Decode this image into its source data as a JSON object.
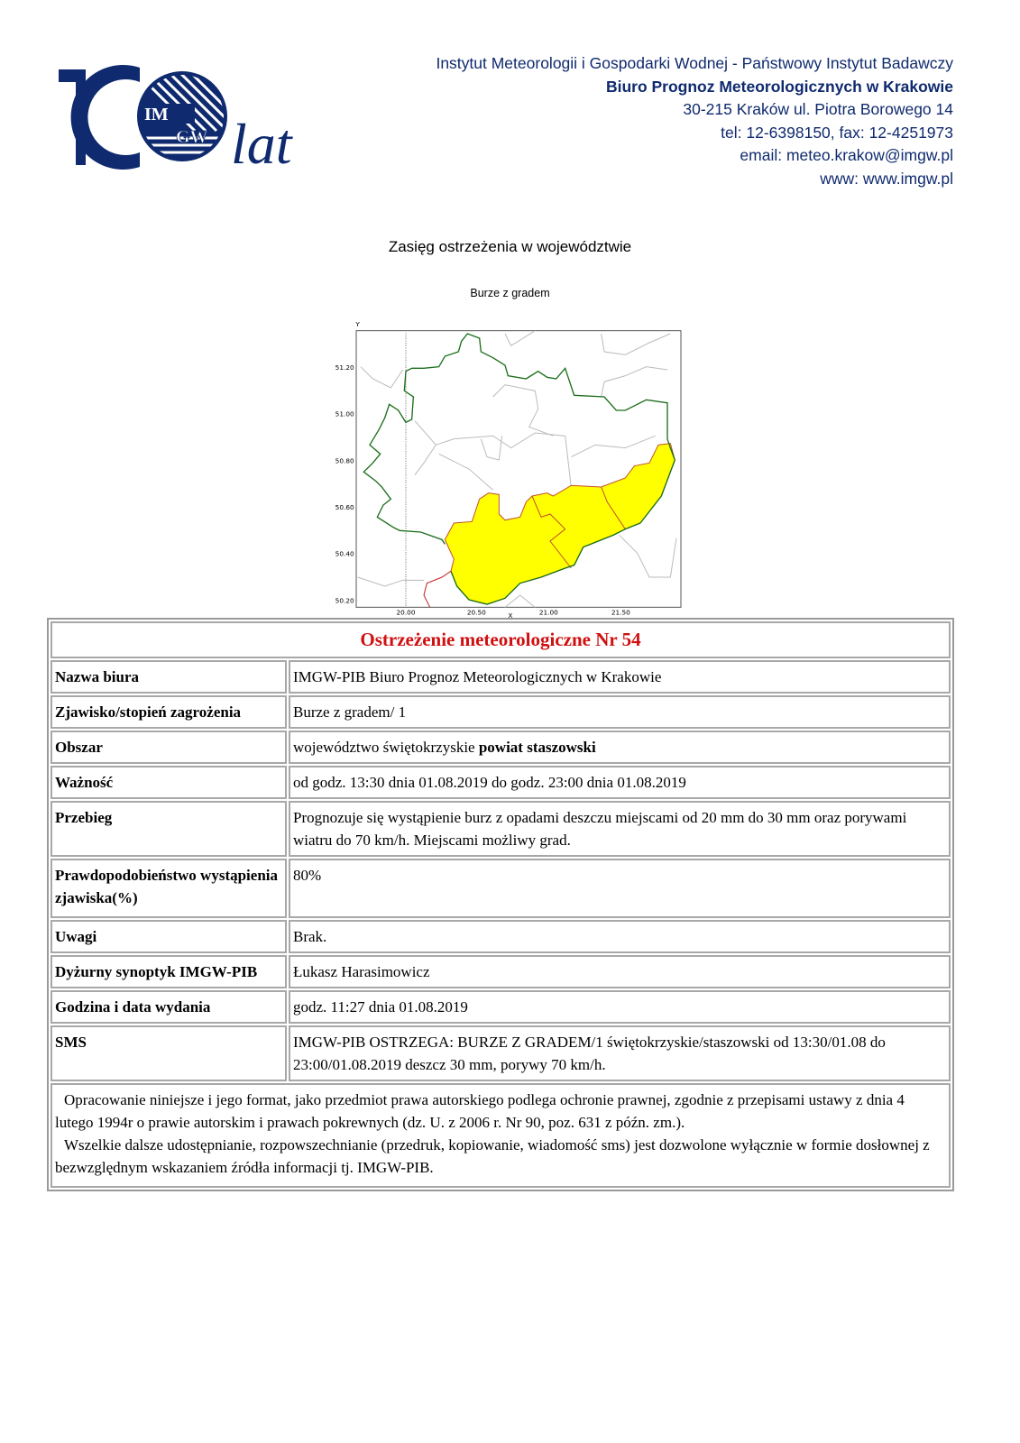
{
  "logo": {
    "text": "100 IMGW lat",
    "brand_color": "#0f2a6e"
  },
  "header": {
    "line1": "Instytut Meteorologii i Gospodarki Wodnej - Państwowy Instytut Badawczy",
    "line2": "Biuro Prognoz Meteorologicznych w Krakowie",
    "line3": "30-215 Kraków ul. Piotra Borowego 14",
    "line4": "tel: 12-6398150, fax: 12-4251973",
    "line5": "email: meteo.krakow@imgw.pl",
    "line6": "www: www.imgw.pl"
  },
  "map": {
    "title": "Zasięg ostrzeżenia w województwie",
    "subtitle": "Burze z gradem",
    "y_axis_label": "Y",
    "x_axis_label": "X",
    "y_ticks": [
      "51.20",
      "51.00",
      "50.80",
      "50.60",
      "50.40",
      "50.20"
    ],
    "x_ticks": [
      "20.00",
      "20.50",
      "21.00",
      "21.50"
    ],
    "warning_color": "#ffff00",
    "border_color": "#1a6e1a"
  },
  "warning": {
    "title": "Ostrzeżenie meteorologiczne Nr 54",
    "rows": [
      {
        "label": "Nazwa biura",
        "value": "IMGW-PIB Biuro Prognoz Meteorologicznych w Krakowie"
      },
      {
        "label": "Zjawisko/stopień zagrożenia",
        "value": "Burze z gradem/ 1"
      },
      {
        "label": "Obszar",
        "value": "województwo świętokrzyskie ",
        "value_bold": "powiat staszowski"
      },
      {
        "label": "Ważność",
        "value": "od godz. 13:30 dnia 01.08.2019 do godz. 23:00 dnia 01.08.2019"
      },
      {
        "label": "Przebieg",
        "value": "Prognozuje się wystąpienie burz z opadami deszczu miejscami od 20 mm do 30 mm oraz porywami wiatru do 70 km/h. Miejscami możliwy grad."
      },
      {
        "label": "Prawdopodobieństwo wystąpienia zjawiska(%)",
        "value": "80%"
      },
      {
        "label": "Uwagi",
        "value": "Brak."
      },
      {
        "label": "Dyżurny synoptyk IMGW-PIB",
        "value": "Łukasz Harasimowicz"
      },
      {
        "label": "Godzina i data wydania",
        "value": "godz. 11:27 dnia 01.08.2019"
      },
      {
        "label": "SMS",
        "value": "IMGW-PIB OSTRZEGA: BURZE Z GRADEM/1 świętokrzyskie/staszowski od 13:30/01.08 do 23:00/01.08.2019 deszcz 30 mm, porywy 70 km/h."
      }
    ],
    "footer_p1": "Opracowanie niniejsze i jego format, jako przedmiot prawa autorskiego podlega ochronie prawnej, zgodnie z przepisami ustawy z dnia 4 lutego 1994r o prawie autorskim i prawach pokrewnych (dz. U. z 2006 r. Nr 90, poz. 631 z późn. zm.).",
    "footer_p2": "Wszelkie dalsze udostępnianie, rozpowszechnianie (przedruk, kopiowanie, wiadomość sms) jest dozwolone wyłącznie w formie dosłownej z bezwzględnym wskazaniem źródła informacji tj. IMGW-PIB."
  }
}
